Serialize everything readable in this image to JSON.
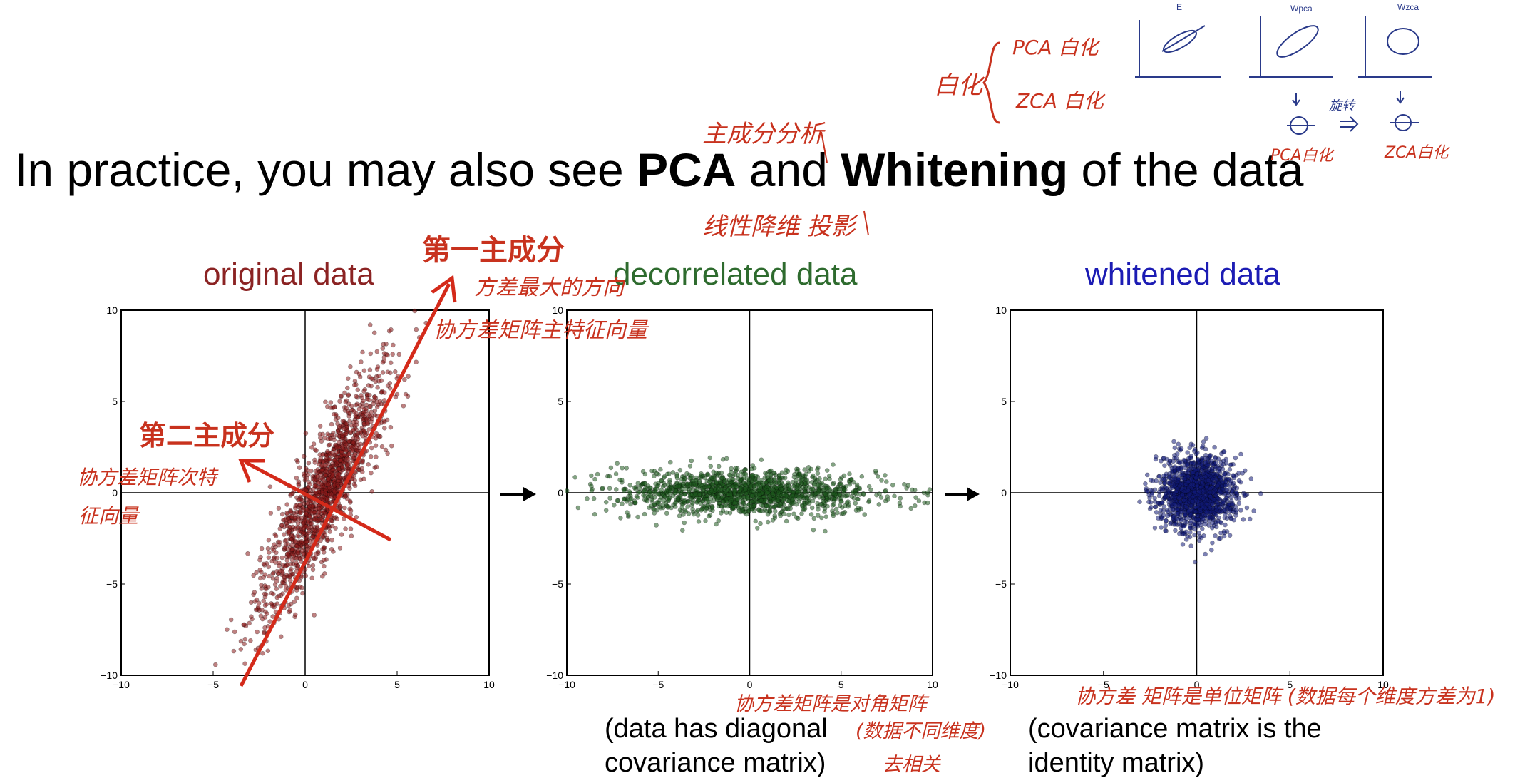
{
  "slide": {
    "title_part1": "In practice, you may also see ",
    "title_bold1": "PCA",
    "title_part2": " and ",
    "title_bold2": "Whitening",
    "title_part3": " of the data"
  },
  "panels": {
    "original": {
      "title": "original data",
      "title_color": "#8b2323"
    },
    "decorrelated": {
      "title": "decorrelated data",
      "title_color": "#2e6b2e"
    },
    "whitened": {
      "title": "whitened data",
      "title_color": "#1c1cb4"
    }
  },
  "captions": {
    "decorrelated_line1": "(data has diagonal",
    "decorrelated_line2": "covariance matrix)",
    "whitened_line1": "(covariance matrix is the",
    "whitened_line2": "identity matrix)"
  },
  "annotations": {
    "pca_cn": "主成分分析",
    "projection_cn": "线性降维 投影",
    "whitening_cn": "白化",
    "pca_whitening_cn": "PCA 白化",
    "zca_whitening_cn": "ZCA 白化",
    "rotate_cn": "旋转",
    "pca_whitening_small": "PCA白化",
    "zca_whitening_small": "ZCA白化",
    "mini_label_e": "E",
    "mini_label_wpca": "Wpca",
    "mini_label_wzca": "Wzca",
    "first_pc_cn": "第一主成分",
    "max_var_cn": "方差最大的方向",
    "main_eig_cn": "协方差矩阵主特征向量",
    "second_pc_cn": "第二主成分",
    "sub_eig_line1": "协方差矩阵次特",
    "sub_eig_line2": "征向量",
    "diag_cov_cn": "协方差矩阵是对角矩阵",
    "diff_dim_cn": "(数据不同维度)",
    "decorrelate_cn": "去相关",
    "identity_cn": "协方差 矩阵是单位矩阵 (数据每个维度方差为1)"
  },
  "chart_data": [
    {
      "type": "scatter",
      "title": "original data",
      "xlim": [
        -10,
        10
      ],
      "ylim": [
        -10,
        10
      ],
      "xticks": [
        -10,
        -5,
        0,
        5,
        10
      ],
      "yticks": [
        -10,
        -5,
        0,
        5,
        10
      ],
      "grid": false,
      "color": "#8b1a1a",
      "distribution": {
        "center": [
          1.0,
          0.0
        ],
        "principal_std": 3.6,
        "minor_std": 0.75,
        "principal_angle_deg": 65,
        "n_points": 1500
      }
    },
    {
      "type": "scatter",
      "title": "decorrelated data",
      "xlim": [
        -10,
        10
      ],
      "ylim": [
        -10,
        10
      ],
      "xticks": [
        -10,
        -5,
        0,
        5,
        10
      ],
      "yticks": [
        -10,
        -5,
        0,
        5,
        10
      ],
      "grid": false,
      "color": "#1e5a1e",
      "distribution": {
        "center": [
          0,
          0
        ],
        "std_x": 3.6,
        "std_y": 0.6,
        "n_points": 1500
      }
    },
    {
      "type": "scatter",
      "title": "whitened data",
      "xlim": [
        -10,
        10
      ],
      "ylim": [
        -10,
        10
      ],
      "xticks": [
        -10,
        -5,
        0,
        5,
        10
      ],
      "yticks": [
        -10,
        -5,
        0,
        5,
        10
      ],
      "grid": false,
      "color": "#101a78",
      "distribution": {
        "center": [
          0,
          0
        ],
        "std_x": 1.0,
        "std_y": 1.0,
        "n_points": 1500
      }
    }
  ]
}
